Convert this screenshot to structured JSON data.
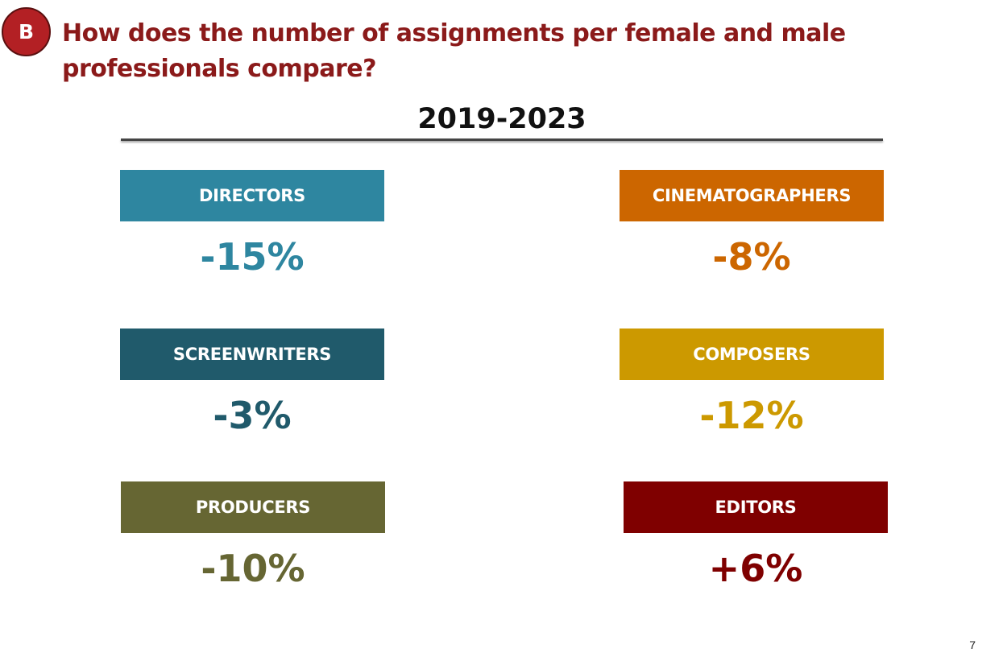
{
  "badge": "B",
  "title": "How does the number of assignments per female and male professionals compare?",
  "period": "2019-2023",
  "cards": [
    {
      "label": "DIRECTORS",
      "value": "-15%",
      "color": "#2e86a0"
    },
    {
      "label": "CINEMATOGRAPHERS",
      "value": "-8%",
      "color": "#cc6600"
    },
    {
      "label": "SCREENWRITERS",
      "value": "-3%",
      "color": "#205a6b"
    },
    {
      "label": "COMPOSERS",
      "value": "-12%",
      "color": "#cc9900"
    },
    {
      "label": "PRODUCERS",
      "value": "-10%",
      "color": "#666633"
    },
    {
      "label": "EDITORS",
      "value": "+6%",
      "color": "#7f0000"
    }
  ],
  "page_number": "7"
}
